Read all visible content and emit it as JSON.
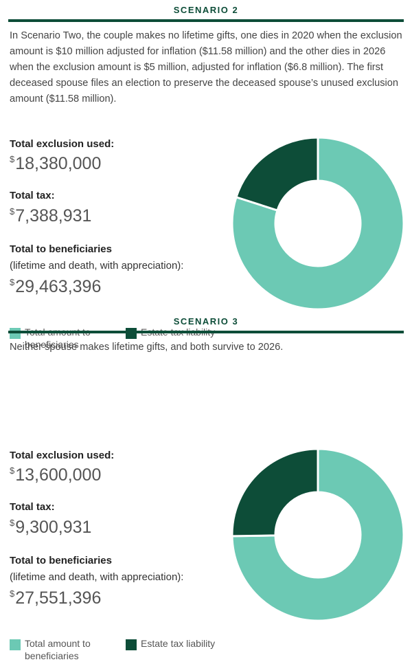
{
  "chart_data": [
    {
      "type": "pie",
      "title": "SCENARIO 2",
      "description": "In Scenario Two, the couple makes no lifetime gifts, one dies in 2020 when the exclusion amount is $10 million adjusted for inflation ($11.58 million) and the other dies in 2026 when the exclusion amount is $5 million, adjusted for inflation ($6.8 million). The first deceased spouse files an election to preserve the deceased spouse’s unused exclusion amount ($11.58 million).",
      "currency": "$",
      "exclusion_label": "Total exclusion used:",
      "exclusion_amount": "18,380,000",
      "tax_label": "Total tax:",
      "beneficiaries_label": "Total to beneficiaries",
      "beneficiaries_note": "(lifetime and death, with appreciation):",
      "categories": [
        "Total amount to beneficiaries",
        "Estate tax liability"
      ],
      "values": [
        29463396,
        7388931
      ],
      "value_labels": [
        "29,463,396",
        "7,388,931"
      ],
      "colors": [
        "#6cc9b4",
        "#0d4d38"
      ]
    },
    {
      "type": "pie",
      "title": "SCENARIO 3",
      "description": "Neither spouse makes lifetime gifts, and both survive to 2026.",
      "currency": "$",
      "exclusion_label": "Total exclusion used:",
      "exclusion_amount": "13,600,000",
      "tax_label": "Total tax:",
      "beneficiaries_label": "Total to beneficiaries",
      "beneficiaries_note": "(lifetime and death, with appreciation):",
      "categories": [
        "Total amount to beneficiaries",
        "Estate tax liability"
      ],
      "values": [
        27551396,
        9300931
      ],
      "value_labels": [
        "27,551,396",
        "9,300,931"
      ],
      "colors": [
        "#6cc9b4",
        "#0d4d38"
      ]
    }
  ]
}
